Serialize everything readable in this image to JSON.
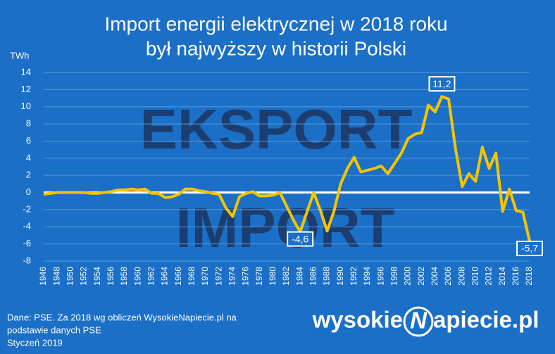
{
  "chart_data": {
    "type": "line",
    "title": [
      "Import energii elektrycznej w 2018 roku",
      "był najwyższy w historii Polski"
    ],
    "y_label": "TWh",
    "x": [
      1946,
      1947,
      1948,
      1949,
      1950,
      1951,
      1952,
      1953,
      1954,
      1955,
      1956,
      1957,
      1958,
      1959,
      1960,
      1961,
      1962,
      1963,
      1964,
      1965,
      1966,
      1967,
      1968,
      1969,
      1970,
      1971,
      1972,
      1973,
      1974,
      1975,
      1976,
      1977,
      1978,
      1979,
      1980,
      1981,
      1982,
      1983,
      1984,
      1985,
      1986,
      1987,
      1988,
      1989,
      1990,
      1991,
      1992,
      1993,
      1994,
      1995,
      1996,
      1997,
      1998,
      1999,
      2000,
      2001,
      2002,
      2003,
      2004,
      2005,
      2006,
      2007,
      2008,
      2009,
      2010,
      2011,
      2012,
      2013,
      2014,
      2015,
      2016,
      2017,
      2018
    ],
    "values": [
      -0.2,
      -0.1,
      0,
      0,
      0,
      0,
      0,
      -0.1,
      -0.1,
      0,
      0.1,
      0.3,
      0.3,
      0.4,
      0.3,
      0.4,
      -0.1,
      -0.1,
      -0.6,
      -0.5,
      -0.2,
      0.4,
      0.4,
      0.2,
      0.1,
      -0.1,
      -0.2,
      -1.8,
      -2.8,
      -0.5,
      -0.1,
      0.1,
      -0.4,
      -0.4,
      -0.3,
      0,
      -1.6,
      -3.2,
      -4.6,
      -2.3,
      0,
      -2.1,
      -4.5,
      -2.2,
      1,
      2.8,
      4.1,
      2.4,
      2.6,
      2.8,
      3.1,
      2.2,
      3.4,
      4.6,
      6.3,
      6.8,
      7.0,
      10.2,
      9.4,
      11.2,
      10.9,
      5.2,
      0.7,
      2.2,
      1.3,
      5.3,
      2.8,
      4.6,
      -2.2,
      0.4,
      -2.1,
      -2.3,
      -5.7
    ],
    "value_labels": [
      null,
      null,
      null,
      null,
      null,
      null,
      null,
      null,
      null,
      null,
      null,
      null,
      null,
      null,
      null,
      null,
      null,
      null,
      null,
      null,
      null,
      null,
      null,
      null,
      null,
      null,
      null,
      null,
      null,
      null,
      null,
      null,
      null,
      null,
      null,
      null,
      null,
      null,
      "-4,6",
      null,
      null,
      null,
      null,
      null,
      null,
      null,
      null,
      null,
      null,
      null,
      null,
      null,
      null,
      null,
      null,
      null,
      null,
      null,
      null,
      "11,2",
      null,
      null,
      null,
      null,
      null,
      null,
      null,
      null,
      null,
      null,
      null,
      null,
      "-5,7"
    ],
    "color": "#f5c400",
    "xlim": [
      1946,
      2018
    ],
    "xticks": [
      1946,
      1948,
      1950,
      1952,
      1954,
      1956,
      1958,
      1960,
      1962,
      1964,
      1966,
      1968,
      1970,
      1972,
      1974,
      1976,
      1978,
      1980,
      1982,
      1984,
      1986,
      1988,
      1990,
      1992,
      1994,
      1996,
      1998,
      2000,
      2002,
      2004,
      2006,
      2008,
      2010,
      2012,
      2014,
      2016,
      2018
    ],
    "ylim": [
      -8,
      14
    ],
    "yticks": [
      -8,
      -6,
      -4,
      -2,
      0,
      2,
      4,
      6,
      8,
      10,
      12,
      14
    ],
    "grid": true,
    "background_labels": {
      "upper": "EKSPORT",
      "lower": "IMPORT"
    },
    "source": [
      "Dane: PSE. Za 2018 wg obliczeń WysokieNapiecie.pl na",
      "podstawie danych PSE",
      "Styczeń 2019"
    ],
    "logo": {
      "left": "wysokie",
      "mark": "N",
      "right": "apiecie.pl"
    }
  }
}
